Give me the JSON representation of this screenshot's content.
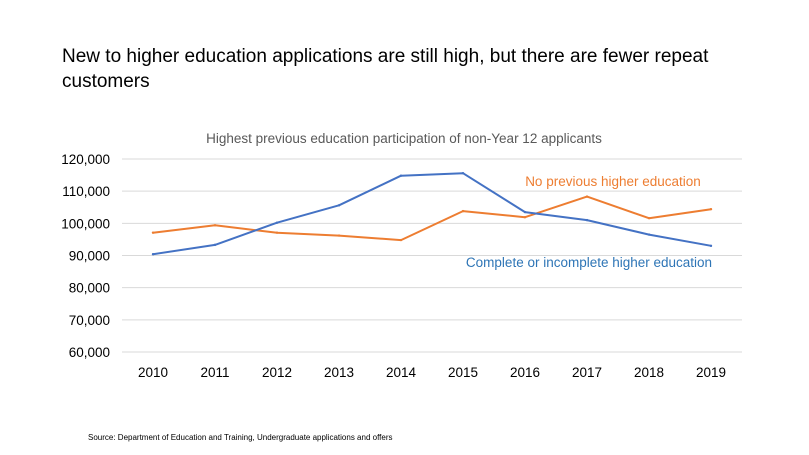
{
  "page": {
    "headline": "New to higher education applications are still high, but there are fewer repeat customers",
    "source": "Source:  Department  of  Education  and Training, Undergraduate  applications  and  offers"
  },
  "chart_data": {
    "type": "line",
    "title": "Highest previous education participation of non-Year 12 applicants",
    "xlabel": "",
    "ylabel": "",
    "categories": [
      "2010",
      "2011",
      "2012",
      "2013",
      "2014",
      "2015",
      "2016",
      "2017",
      "2018",
      "2019"
    ],
    "ylim": [
      60000,
      120000
    ],
    "yticks": [
      60000,
      70000,
      80000,
      90000,
      100000,
      110000,
      120000
    ],
    "ytick_labels": [
      "60,000",
      "70,000",
      "80,000",
      "90,000",
      "100,000",
      "110,000",
      "120,000"
    ],
    "grid": true,
    "legend": "inline labels",
    "series": [
      {
        "name": "No previous higher education",
        "color": "#ED7D31",
        "label_color": "#ED7D31",
        "values": [
          97100,
          99400,
          97100,
          96200,
          94800,
          103800,
          101900,
          108300,
          101600,
          104400
        ]
      },
      {
        "name": "Complete or incomplete higher education",
        "color": "#4472C4",
        "label_color": "#2E75B6",
        "values": [
          90400,
          93300,
          100200,
          105600,
          114800,
          115600,
          103500,
          101000,
          96500,
          93000
        ]
      }
    ]
  }
}
